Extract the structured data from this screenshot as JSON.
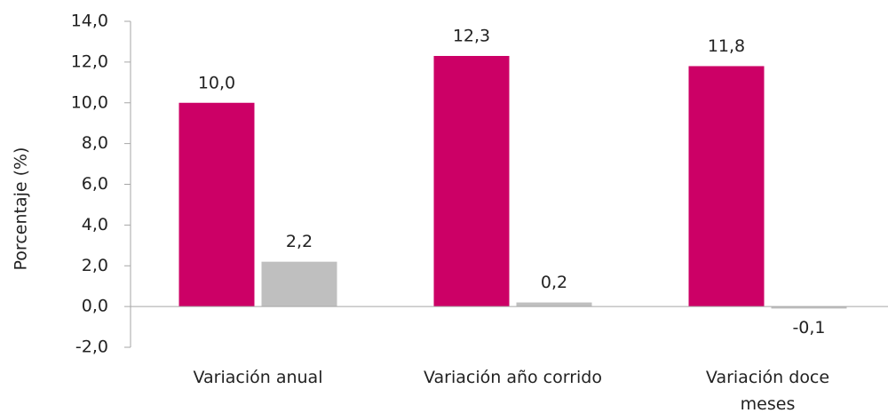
{
  "chart_data": {
    "type": "bar",
    "y_label": "Porcentaje (%)",
    "categories": [
      "Variación anual",
      "Variación año corrido",
      "Variación doce meses"
    ],
    "series": [
      {
        "color": "#cc0066",
        "values": [
          10.0,
          12.3,
          11.8
        ],
        "value_labels": [
          "10,0",
          "12,3",
          "11,8"
        ]
      },
      {
        "color": "#bfbfbf",
        "values": [
          2.2,
          0.2,
          -0.1
        ],
        "value_labels": [
          "2,2",
          "0,2",
          "-0,1"
        ]
      }
    ],
    "ylim": [
      -2,
      14
    ],
    "yticks": [
      {
        "value": -2,
        "label": "-2,0"
      },
      {
        "value": 0,
        "label": "0,0"
      },
      {
        "value": 2,
        "label": "2,0"
      },
      {
        "value": 4,
        "label": "4,0"
      },
      {
        "value": 6,
        "label": "6,0"
      },
      {
        "value": 8,
        "label": "8,0"
      },
      {
        "value": 10,
        "label": "10,0"
      },
      {
        "value": 12,
        "label": "12,0"
      },
      {
        "value": 14,
        "label": "14,0"
      }
    ],
    "grid": false
  }
}
